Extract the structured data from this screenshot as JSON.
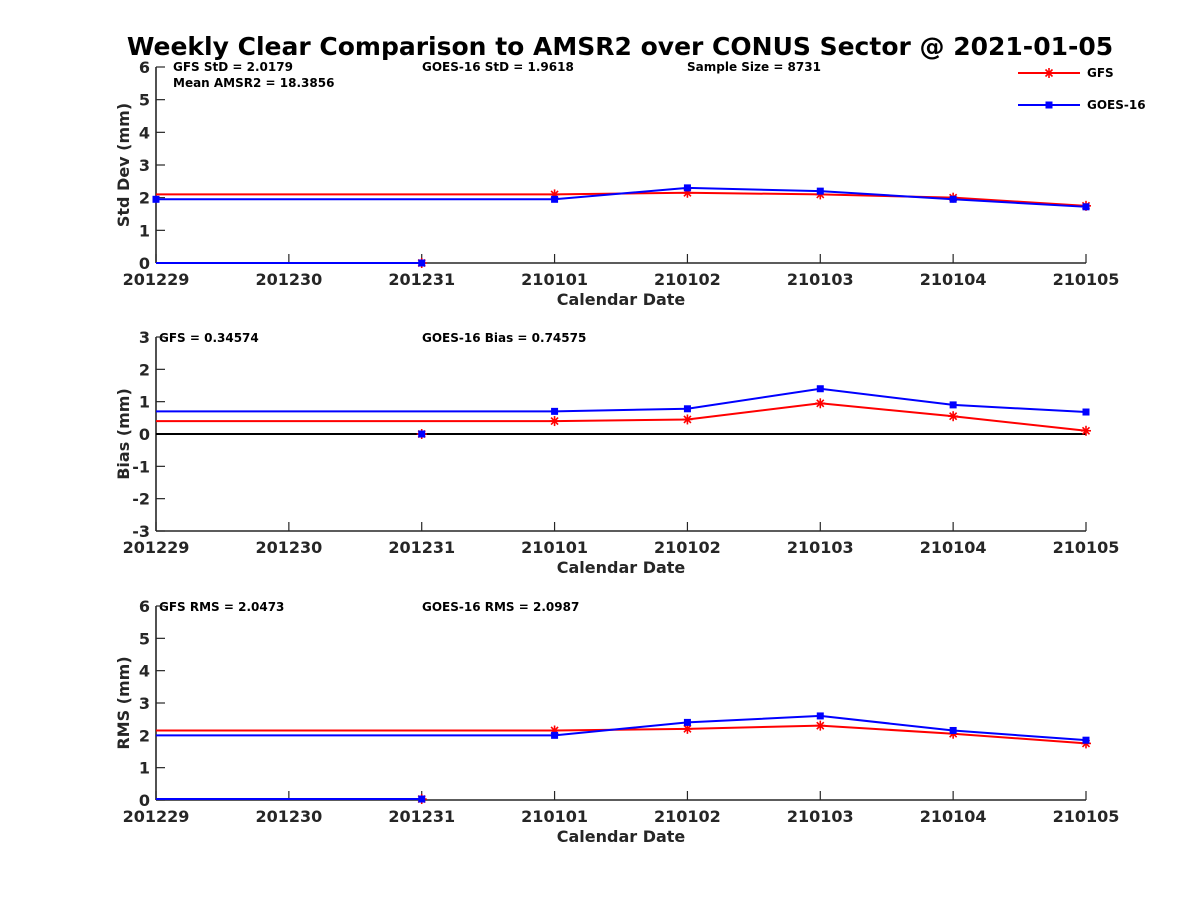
{
  "title": "Weekly Clear Comparison to AMSR2 over CONUS Sector @ 2021-01-05",
  "legend": {
    "placement": "top-right",
    "entries": [
      {
        "name": "GFS",
        "color": "#ff0000",
        "marker": "asterisk"
      },
      {
        "name": "GOES-16",
        "color": "#0000ff",
        "marker": "square"
      }
    ]
  },
  "chart_data": [
    {
      "type": "line",
      "xlabel": "Calendar Date",
      "ylabel": "Std Dev (mm)",
      "x": [
        "201229",
        "201230",
        "201231",
        "210101",
        "210102",
        "210103",
        "210104",
        "210105"
      ],
      "yticks": [
        0,
        1,
        2,
        3,
        4,
        5,
        6
      ],
      "ylim": [
        0,
        6
      ],
      "grid": false,
      "annotations": [
        "GFS StD = 2.0179",
        "GOES-16 StD = 1.9618",
        "Sample Size = 8731",
        "Mean AMSR2 = 18.3856"
      ],
      "series": [
        {
          "name": "GFS",
          "color": "#ff0000",
          "marker": "asterisk",
          "segments": [
            {
              "x": [
                0,
                3,
                4,
                5,
                6,
                7
              ],
              "y": [
                2.1,
                2.1,
                2.15,
                2.1,
                2.0,
                1.75
              ]
            },
            {
              "x": [
                0,
                2
              ],
              "y": [
                0,
                0
              ]
            }
          ],
          "marker_idx": [
            2,
            3,
            4,
            5,
            6,
            7
          ],
          "marker_y": [
            0,
            2.1,
            2.15,
            2.1,
            2.0,
            1.75
          ]
        },
        {
          "name": "GOES-16",
          "color": "#0000ff",
          "marker": "square",
          "segments": [
            {
              "x": [
                0,
                3,
                4,
                5,
                6,
                7
              ],
              "y": [
                1.95,
                1.95,
                2.3,
                2.2,
                1.95,
                1.72
              ]
            },
            {
              "x": [
                0,
                2
              ],
              "y": [
                0,
                0
              ]
            }
          ],
          "marker_idx": [
            0,
            2,
            3,
            4,
            5,
            6,
            7
          ],
          "marker_y": [
            1.95,
            0,
            1.95,
            2.3,
            2.2,
            1.95,
            1.72
          ]
        }
      ]
    },
    {
      "type": "line",
      "xlabel": "Calendar Date",
      "ylabel": "Bias (mm)",
      "x": [
        "201229",
        "201230",
        "201231",
        "210101",
        "210102",
        "210103",
        "210104",
        "210105"
      ],
      "yticks": [
        -3,
        -2,
        -1,
        0,
        1,
        2,
        3
      ],
      "ylim": [
        -3,
        3
      ],
      "grid": false,
      "zero_line": true,
      "annotations": [
        "GFS = 0.34574",
        "GOES-16 Bias  = 0.74575"
      ],
      "series": [
        {
          "name": "GFS",
          "color": "#ff0000",
          "marker": "asterisk",
          "segments": [
            {
              "x": [
                0,
                3,
                4,
                5,
                6,
                7
              ],
              "y": [
                0.4,
                0.4,
                0.45,
                0.95,
                0.55,
                0.1
              ]
            }
          ],
          "marker_idx": [
            2,
            3,
            4,
            5,
            6,
            7
          ],
          "marker_y": [
            0,
            0.4,
            0.45,
            0.95,
            0.55,
            0.1
          ]
        },
        {
          "name": "GOES-16",
          "color": "#0000ff",
          "marker": "square",
          "segments": [
            {
              "x": [
                0,
                3,
                4,
                5,
                6,
                7
              ],
              "y": [
                0.7,
                0.7,
                0.78,
                1.4,
                0.9,
                0.68
              ]
            }
          ],
          "marker_idx": [
            2,
            3,
            4,
            5,
            6,
            7
          ],
          "marker_y": [
            0,
            0.7,
            0.78,
            1.4,
            0.9,
            0.68
          ]
        }
      ]
    },
    {
      "type": "line",
      "xlabel": "Calendar Date",
      "ylabel": "RMS (mm)",
      "x": [
        "201229",
        "201230",
        "201231",
        "210101",
        "210102",
        "210103",
        "210104",
        "210105"
      ],
      "yticks": [
        0,
        1,
        2,
        3,
        4,
        5,
        6
      ],
      "ylim": [
        0,
        6
      ],
      "grid": false,
      "annotations": [
        "GFS RMS = 2.0473",
        "GOES-16 RMS = 2.0987"
      ],
      "series": [
        {
          "name": "GFS",
          "color": "#ff0000",
          "marker": "asterisk",
          "segments": [
            {
              "x": [
                0,
                3,
                4,
                5,
                6,
                7
              ],
              "y": [
                2.15,
                2.15,
                2.2,
                2.3,
                2.05,
                1.75
              ]
            },
            {
              "x": [
                0,
                2
              ],
              "y": [
                0.03,
                0.03
              ]
            }
          ],
          "marker_idx": [
            2,
            3,
            4,
            5,
            6,
            7
          ],
          "marker_y": [
            0.03,
            2.15,
            2.2,
            2.3,
            2.05,
            1.75
          ]
        },
        {
          "name": "GOES-16",
          "color": "#0000ff",
          "marker": "square",
          "segments": [
            {
              "x": [
                0,
                3,
                4,
                5,
                6,
                7
              ],
              "y": [
                2.0,
                2.0,
                2.4,
                2.6,
                2.15,
                1.85
              ]
            },
            {
              "x": [
                0,
                2
              ],
              "y": [
                0.03,
                0.03
              ]
            }
          ],
          "marker_idx": [
            2,
            3,
            4,
            5,
            6,
            7
          ],
          "marker_y": [
            0.03,
            2.0,
            2.4,
            2.6,
            2.15,
            1.85
          ]
        }
      ]
    }
  ]
}
